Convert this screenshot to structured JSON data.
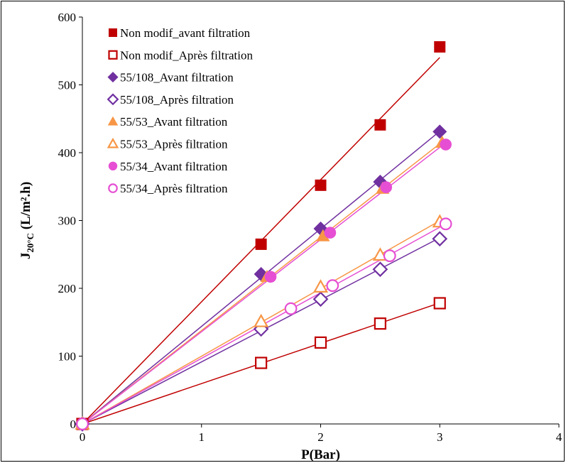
{
  "chart_data": {
    "type": "scatter",
    "xlabel": "P(Bar)",
    "ylabel": "J20°C (L/m².h)",
    "ylabel_main": "J",
    "ylabel_sub": "20°C",
    "ylabel_rest": " (L/m².h)",
    "xlim": [
      0,
      4
    ],
    "ylim": [
      0,
      600
    ],
    "xticks": [
      "0",
      "1",
      "2",
      "3",
      "4"
    ],
    "yticks": [
      "0",
      "100",
      "200",
      "300",
      "400",
      "500",
      "600"
    ],
    "grid": false,
    "legend_position": "top-left",
    "series": [
      {
        "name": "Non modif_avant filtration",
        "marker": "square",
        "filled": true,
        "color": "#c00000",
        "x": [
          0,
          1.5,
          2,
          2.5,
          3
        ],
        "y": [
          0,
          265,
          352,
          441,
          556
        ]
      },
      {
        "name": "Non modif_Après filtration",
        "marker": "square",
        "filled": false,
        "color": "#c00000",
        "x": [
          0,
          1.5,
          2,
          2.5,
          3
        ],
        "y": [
          0,
          90,
          120,
          148,
          178
        ]
      },
      {
        "name": "55/108_Avant filtration",
        "marker": "diamond",
        "filled": true,
        "color": "#7030a0",
        "x": [
          0,
          1.5,
          2,
          2.5,
          3
        ],
        "y": [
          0,
          221,
          288,
          357,
          431
        ]
      },
      {
        "name": "55/108_Après filtration",
        "marker": "diamond",
        "filled": false,
        "color": "#7030a0",
        "x": [
          0,
          1.5,
          2,
          2.5,
          3
        ],
        "y": [
          0,
          140,
          184,
          228,
          273
        ]
      },
      {
        "name": "55/53_Avant filtration",
        "marker": "triangle",
        "filled": true,
        "color": "#f79646",
        "x": [
          0,
          1.55,
          2.02,
          2.52,
          3.02
        ],
        "y": [
          0,
          217,
          277,
          347,
          415
        ]
      },
      {
        "name": "55/53_Après filtration",
        "marker": "triangle",
        "filled": false,
        "color": "#f79646",
        "x": [
          0,
          1.5,
          2,
          2.5,
          3
        ],
        "y": [
          0,
          151,
          202,
          249,
          298
        ]
      },
      {
        "name": "55/34_Avant filtration",
        "marker": "circle",
        "filled": true,
        "color": "#e64fd3",
        "x": [
          0,
          1.58,
          2.08,
          2.55,
          3.05
        ],
        "y": [
          0,
          217,
          282,
          349,
          412
        ]
      },
      {
        "name": "55/34_Après filtration",
        "marker": "circle",
        "filled": false,
        "color": "#e64fd3",
        "x": [
          0,
          1.75,
          2.1,
          2.58,
          3.05
        ],
        "y": [
          0,
          170,
          204,
          248,
          295
        ]
      }
    ]
  }
}
